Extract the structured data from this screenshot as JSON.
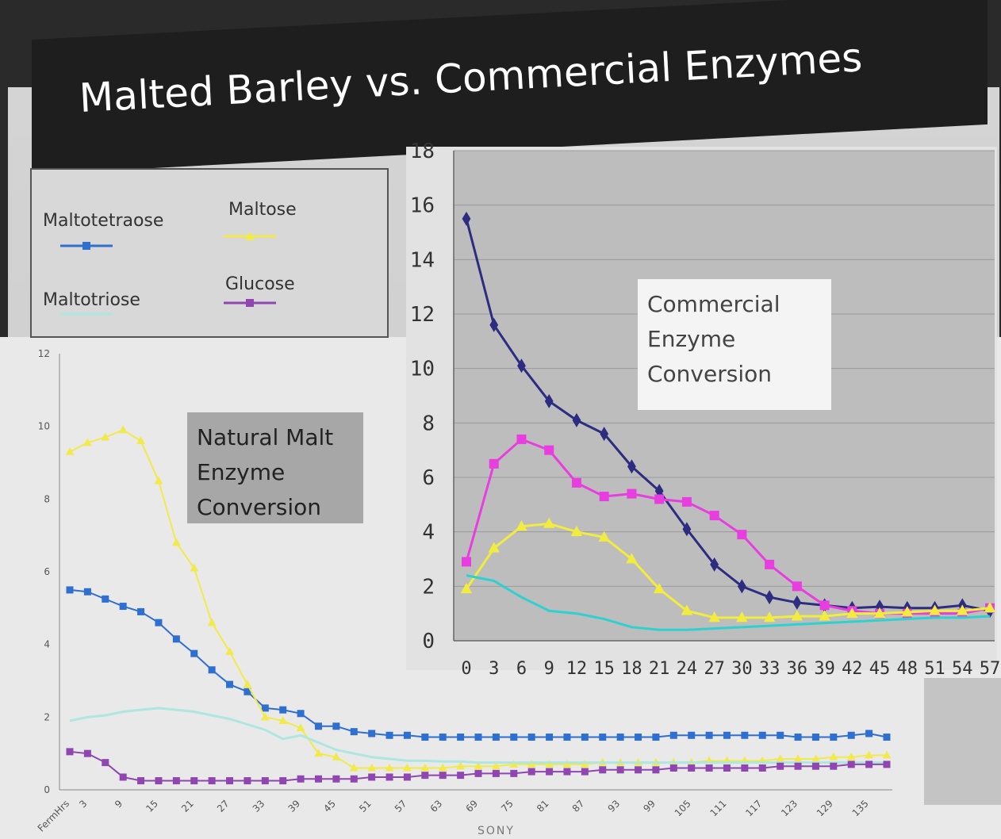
{
  "title": "Malted Barley vs. Commercial Enzymes",
  "brand": "SONY",
  "legend": [
    {
      "label": "Maltotetraose",
      "color": "#2f6fd0",
      "marker": "square"
    },
    {
      "label": "Maltose",
      "color": "#f2e94a",
      "marker": "triangle"
    },
    {
      "label": "Maltotriose",
      "color": "#aee6e0",
      "marker": "none"
    },
    {
      "label": "Glucose",
      "color": "#8f46b0",
      "marker": "square"
    }
  ],
  "annotations": {
    "natural": [
      "Natural Malt",
      "Enzyme",
      "Conversion"
    ],
    "commercial": [
      "Commercial",
      "Enzyme",
      "Conversion"
    ]
  },
  "chart_data": [
    {
      "type": "line",
      "ylim": [
        0,
        12
      ],
      "yticks": [
        0,
        2,
        4,
        6,
        8,
        10,
        12
      ],
      "x_first_label": "FermHrs",
      "x": [
        0,
        3,
        6,
        9,
        12,
        15,
        18,
        21,
        24,
        27,
        30,
        33,
        36,
        39,
        42,
        45,
        48,
        51,
        54,
        57,
        60,
        63,
        66,
        69,
        72,
        75,
        78,
        81,
        84,
        87,
        90,
        93,
        96,
        99,
        102,
        105,
        108,
        111,
        114,
        117,
        120,
        123,
        126,
        129,
        132,
        135,
        138
      ],
      "xtick_labels": [
        "FermHrs",
        "3",
        "9",
        "15",
        "21",
        "27",
        "33",
        "39",
        "45",
        "51",
        "57",
        "63",
        "69",
        "75",
        "81",
        "87",
        "93",
        "99",
        "105",
        "111",
        "117",
        "123",
        "129",
        "135"
      ],
      "series": [
        {
          "name": "Maltotetraose",
          "color": "#2f6fd0",
          "marker": "square",
          "values": [
            5.5,
            5.45,
            5.25,
            5.05,
            4.9,
            4.6,
            4.15,
            3.75,
            3.3,
            2.9,
            2.7,
            2.25,
            2.2,
            2.1,
            1.75,
            1.75,
            1.6,
            1.55,
            1.5,
            1.5,
            1.45,
            1.45,
            1.45,
            1.45,
            1.45,
            1.45,
            1.45,
            1.45,
            1.45,
            1.45,
            1.45,
            1.45,
            1.45,
            1.45,
            1.5,
            1.5,
            1.5,
            1.5,
            1.5,
            1.5,
            1.5,
            1.45,
            1.45,
            1.45,
            1.5,
            1.55,
            1.45
          ]
        },
        {
          "name": "Maltose",
          "color": "#f2e94a",
          "marker": "triangle",
          "values": [
            9.3,
            9.55,
            9.7,
            9.9,
            9.6,
            8.5,
            6.8,
            6.1,
            4.6,
            3.8,
            2.9,
            2.0,
            1.9,
            1.7,
            1.0,
            0.9,
            0.6,
            0.6,
            0.6,
            0.6,
            0.6,
            0.6,
            0.65,
            0.65,
            0.65,
            0.7,
            0.7,
            0.7,
            0.7,
            0.7,
            0.75,
            0.75,
            0.75,
            0.75,
            0.75,
            0.75,
            0.8,
            0.8,
            0.8,
            0.8,
            0.85,
            0.85,
            0.85,
            0.9,
            0.9,
            0.95,
            0.95
          ]
        },
        {
          "name": "Maltotriose",
          "color": "#aee6e0",
          "marker": "none",
          "values": [
            1.9,
            2.0,
            2.05,
            2.15,
            2.2,
            2.25,
            2.2,
            2.15,
            2.05,
            1.95,
            1.8,
            1.65,
            1.4,
            1.5,
            1.3,
            1.1,
            1.0,
            0.9,
            0.85,
            0.8,
            0.8,
            0.78,
            0.78,
            0.75,
            0.75,
            0.75,
            0.75,
            0.75,
            0.75,
            0.75,
            0.75,
            0.75,
            0.75,
            0.75,
            0.75,
            0.75,
            0.75,
            0.75,
            0.75,
            0.75,
            0.75,
            0.75,
            0.75,
            0.75,
            0.75,
            0.75,
            0.75
          ]
        },
        {
          "name": "Glucose",
          "color": "#8f46b0",
          "marker": "square",
          "values": [
            1.05,
            1.0,
            0.75,
            0.35,
            0.25,
            0.25,
            0.25,
            0.25,
            0.25,
            0.25,
            0.25,
            0.25,
            0.25,
            0.3,
            0.3,
            0.3,
            0.3,
            0.35,
            0.35,
            0.35,
            0.4,
            0.4,
            0.4,
            0.45,
            0.45,
            0.45,
            0.5,
            0.5,
            0.5,
            0.5,
            0.55,
            0.55,
            0.55,
            0.55,
            0.6,
            0.6,
            0.6,
            0.6,
            0.6,
            0.6,
            0.65,
            0.65,
            0.65,
            0.65,
            0.7,
            0.7,
            0.7
          ]
        }
      ]
    },
    {
      "type": "line",
      "ylim": [
        0,
        18
      ],
      "yticks": [
        0,
        2,
        4,
        6,
        8,
        10,
        12,
        14,
        16,
        18
      ],
      "x": [
        0,
        3,
        6,
        9,
        12,
        15,
        18,
        21,
        24,
        27,
        30,
        33,
        36,
        39,
        42,
        45,
        48,
        51,
        54,
        57
      ],
      "xtick_labels": [
        "0",
        "3",
        "6",
        "9",
        "12",
        "15",
        "18",
        "21",
        "24",
        "27",
        "30",
        "33",
        "36",
        "39",
        "42",
        "45",
        "48",
        "51",
        "54",
        "57"
      ],
      "series": [
        {
          "color": "#2c2c80",
          "marker": "diamond",
          "values": [
            15.5,
            11.6,
            10.1,
            8.8,
            8.1,
            7.6,
            6.4,
            5.5,
            4.1,
            2.8,
            2.0,
            1.6,
            1.4,
            1.3,
            1.2,
            1.25,
            1.2,
            1.2,
            1.3,
            1.1
          ]
        },
        {
          "color": "#e83ee0",
          "marker": "square",
          "values": [
            2.9,
            6.5,
            7.4,
            7.0,
            5.8,
            5.3,
            5.4,
            5.2,
            5.1,
            4.6,
            3.9,
            2.8,
            2.0,
            1.3,
            1.1,
            1.0,
            1.0,
            1.0,
            1.0,
            1.2
          ]
        },
        {
          "color": "#f2ec3e",
          "marker": "triangle",
          "values": [
            1.9,
            3.4,
            4.2,
            4.3,
            4.0,
            3.8,
            3.0,
            1.9,
            1.1,
            0.85,
            0.85,
            0.85,
            0.9,
            0.9,
            1.0,
            1.0,
            1.05,
            1.1,
            1.1,
            1.2
          ]
        },
        {
          "color": "#2fd0d0",
          "marker": "none",
          "values": [
            2.4,
            2.2,
            1.6,
            1.1,
            1.0,
            0.8,
            0.5,
            0.4,
            0.4,
            0.45,
            0.5,
            0.55,
            0.6,
            0.65,
            0.7,
            0.75,
            0.8,
            0.85,
            0.85,
            0.9
          ]
        }
      ]
    }
  ]
}
